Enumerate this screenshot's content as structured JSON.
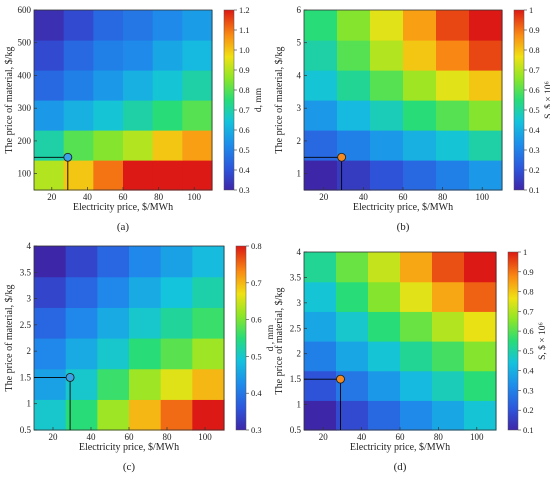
{
  "chart_data": [
    {
      "id": "a",
      "type": "heatmap",
      "panel_label": "(a)",
      "xlabel": "Electricity price, $/MWh",
      "ylabel": "The price of material, $/kg",
      "colorbar_label": "d, mm",
      "xlim": [
        10,
        110
      ],
      "ylim": [
        50,
        600
      ],
      "xticks": [
        "20",
        "40",
        "60",
        "80",
        "100"
      ],
      "yticks": [
        "100",
        "200",
        "300",
        "400",
        "500",
        "600"
      ],
      "colorbar_ticks": [
        "0.3",
        "0.4",
        "0.5",
        "0.6",
        "0.7",
        "0.8",
        "0.9",
        "1.0",
        "1.1",
        "1.2"
      ],
      "colorbar_range": [
        0.3,
        1.2
      ],
      "marker": {
        "x": 29,
        "y": 150,
        "color": "#3aa3e8"
      },
      "grid": [
        [
          0.9,
          1.0,
          1.1,
          1.2,
          1.2,
          1.2
        ],
        [
          0.7,
          0.8,
          0.85,
          0.9,
          1.0,
          1.05
        ],
        [
          0.55,
          0.6,
          0.65,
          0.7,
          0.75,
          0.8
        ],
        [
          0.45,
          0.5,
          0.55,
          0.6,
          0.65,
          0.7
        ],
        [
          0.38,
          0.45,
          0.5,
          0.52,
          0.58,
          0.62
        ],
        [
          0.32,
          0.38,
          0.45,
          0.48,
          0.52,
          0.56
        ]
      ]
    },
    {
      "id": "b",
      "type": "heatmap",
      "panel_label": "(b)",
      "xlabel": "Electricity price, $/MWh",
      "ylabel": "The price of material, $/kg",
      "colorbar_label": "S, $ × 10⁶",
      "xlim": [
        10,
        110
      ],
      "ylim": [
        0.5,
        6
      ],
      "xticks": [
        "20",
        "40",
        "60",
        "80",
        "100"
      ],
      "yticks": [
        "1",
        "2",
        "3",
        "4",
        "5",
        "6"
      ],
      "colorbar_ticks": [
        "0.1",
        "0.2",
        "0.3",
        "0.4",
        "0.5",
        "0.6",
        "0.7",
        "0.8",
        "0.9",
        "1"
      ],
      "colorbar_range": [
        0.1,
        1.0
      ],
      "marker": {
        "x": 29,
        "y": 1.5,
        "color": "#f58a20"
      },
      "grid": [
        [
          0.1,
          0.15,
          0.2,
          0.25,
          0.3,
          0.35
        ],
        [
          0.25,
          0.3,
          0.35,
          0.4,
          0.45,
          0.5
        ],
        [
          0.35,
          0.42,
          0.48,
          0.55,
          0.6,
          0.65
        ],
        [
          0.45,
          0.52,
          0.6,
          0.68,
          0.75,
          0.8
        ],
        [
          0.5,
          0.6,
          0.7,
          0.8,
          0.88,
          0.95
        ],
        [
          0.55,
          0.65,
          0.75,
          0.85,
          0.95,
          1.0
        ]
      ]
    },
    {
      "id": "c",
      "type": "heatmap",
      "panel_label": "(c)",
      "xlabel": "Electricity price, $/MWh",
      "ylabel": "The price of material, $/kg",
      "colorbar_label": "d , mm",
      "xlim": [
        10,
        110
      ],
      "ylim": [
        0.5,
        4
      ],
      "xticks": [
        "20",
        "40",
        "60",
        "80",
        "100"
      ],
      "yticks": [
        "0.5",
        "1",
        "1.5",
        "2",
        "2.5",
        "3",
        "3.5",
        "4"
      ],
      "colorbar_ticks": [
        "0.3",
        "0.4",
        "0.5",
        "0.6",
        "0.7",
        "0.8"
      ],
      "colorbar_range": [
        0.3,
        0.8
      ],
      "marker": {
        "x": 29,
        "y": 1.5,
        "color": "#3aa3e8"
      },
      "grid": [
        [
          0.5,
          0.55,
          0.62,
          0.7,
          0.75,
          0.8
        ],
        [
          0.45,
          0.5,
          0.56,
          0.62,
          0.66,
          0.7
        ],
        [
          0.42,
          0.46,
          0.5,
          0.55,
          0.58,
          0.62
        ],
        [
          0.38,
          0.42,
          0.46,
          0.5,
          0.53,
          0.56
        ],
        [
          0.34,
          0.38,
          0.42,
          0.46,
          0.49,
          0.52
        ],
        [
          0.3,
          0.34,
          0.38,
          0.42,
          0.45,
          0.48
        ]
      ]
    },
    {
      "id": "d",
      "type": "heatmap",
      "panel_label": "(d)",
      "xlabel": "Electricity price, $/MWh",
      "ylabel": "The price of material, $/kg",
      "colorbar_label": "S, $ × 10⁶",
      "xlim": [
        10,
        110
      ],
      "ylim": [
        0.5,
        4
      ],
      "xticks": [
        "20",
        "40",
        "60",
        "80",
        "100"
      ],
      "yticks": [
        "0.5",
        "1",
        "1.5",
        "2",
        "2.5",
        "3",
        "3.5",
        "4"
      ],
      "colorbar_ticks": [
        "0.1",
        "0.2",
        "0.3",
        "0.4",
        "0.5",
        "0.6",
        "0.7",
        "0.8",
        "0.9",
        "1"
      ],
      "colorbar_range": [
        0.1,
        1.0
      ],
      "marker": {
        "x": 29,
        "y": 1.5,
        "color": "#f58a20"
      },
      "grid": [
        [
          0.1,
          0.18,
          0.25,
          0.32,
          0.38,
          0.45
        ],
        [
          0.2,
          0.28,
          0.35,
          0.42,
          0.48,
          0.55
        ],
        [
          0.3,
          0.38,
          0.45,
          0.52,
          0.58,
          0.65
        ],
        [
          0.38,
          0.46,
          0.55,
          0.62,
          0.7,
          0.76
        ],
        [
          0.45,
          0.55,
          0.65,
          0.75,
          0.84,
          0.92
        ],
        [
          0.52,
          0.62,
          0.72,
          0.84,
          0.94,
          1.0
        ]
      ]
    }
  ]
}
